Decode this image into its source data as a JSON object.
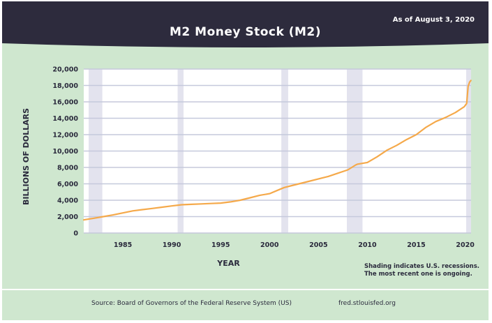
{
  "header": {
    "title": "M2 Money Stock (M2)",
    "as_of": "As of August 3, 2020"
  },
  "footer": {
    "note_line1": "Shading indicates U.S. recessions.",
    "note_line2": "The most recent one is ongoing.",
    "source": "Source: Board of Governors of the Federal Reserve System (US)",
    "url": "fred.stlouisfed.org"
  },
  "colors": {
    "header_bg": "#2d2b3d",
    "background": "#cfe7cf",
    "plot_bg": "#ffffff",
    "recession": "#e3e3ee",
    "gridline": "#c5c9dc",
    "line": "#f5a94a"
  },
  "chart_data": {
    "type": "line",
    "title": "M2 Money Stock (M2)",
    "xlabel": "YEAR",
    "ylabel": "BILLIONS OF DOLLARS",
    "xlim": [
      1981.0,
      2020.6
    ],
    "ylim": [
      0,
      20000
    ],
    "xticks": [
      1985,
      1990,
      1995,
      2000,
      2005,
      2010,
      2015,
      2020
    ],
    "yticks": [
      0,
      2000,
      4000,
      6000,
      8000,
      10000,
      12000,
      14000,
      16000,
      18000,
      20000
    ],
    "ytick_labels": [
      "0",
      "2,000",
      "4,000",
      "6,000",
      "8,000",
      "10,000",
      "12,000",
      "14,000",
      "16,000",
      "18,000",
      "20,000"
    ],
    "grid": true,
    "recessions": [
      [
        1981.5,
        1982.9
      ],
      [
        1990.6,
        1991.2
      ],
      [
        2001.2,
        2001.9
      ],
      [
        2007.9,
        2009.5
      ],
      [
        2020.1,
        2020.6
      ]
    ],
    "series": [
      {
        "x": [
          1981.0,
          1982.0,
          1983.0,
          1984.0,
          1985.0,
          1986.0,
          1987.0,
          1988.0,
          1989.0,
          1990.0,
          1991.0,
          1992.0,
          1993.0,
          1994.0,
          1995.0,
          1996.0,
          1997.0,
          1998.0,
          1999.0,
          2000.0,
          2001.0,
          2001.5,
          2002.0,
          2003.0,
          2004.0,
          2005.0,
          2006.0,
          2007.0,
          2008.0,
          2008.8,
          2009.0,
          2010.0,
          2011.0,
          2012.0,
          2013.0,
          2014.0,
          2015.0,
          2016.0,
          2017.0,
          2018.0,
          2019.0,
          2019.9,
          2020.15,
          2020.3,
          2020.45,
          2020.58
        ],
        "y": [
          1600,
          1800,
          2000,
          2200,
          2450,
          2700,
          2850,
          3000,
          3150,
          3300,
          3450,
          3500,
          3550,
          3600,
          3650,
          3800,
          4000,
          4300,
          4600,
          4800,
          5300,
          5550,
          5700,
          6000,
          6300,
          6600,
          6900,
          7300,
          7700,
          8300,
          8400,
          8600,
          9300,
          10100,
          10700,
          11400,
          12000,
          12900,
          13600,
          14100,
          14700,
          15400,
          15800,
          17900,
          18400,
          18600
        ]
      }
    ]
  }
}
